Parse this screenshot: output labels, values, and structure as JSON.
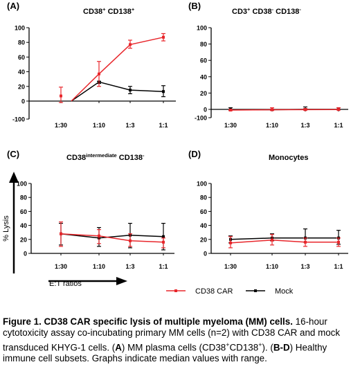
{
  "figure": {
    "x_ticks": [
      "1:30",
      "1:10",
      "1:3",
      "1:1"
    ],
    "y_ticks": [
      -100,
      0,
      20,
      40,
      60,
      80,
      100
    ],
    "y_axis_label": "% Lysis",
    "x_axis_label": "E:T ratios",
    "legend": [
      {
        "label": "CD38 CAR",
        "color": "#e8262b"
      },
      {
        "label": "Mock",
        "color": "#000000"
      }
    ]
  },
  "chart_data": [
    {
      "type": "line",
      "panel_letter": "(A)",
      "title_parts": [
        [
          "CD38",
          ""
        ],
        [
          "+",
          "sup"
        ],
        [
          " CD138",
          ""
        ],
        [
          "+",
          "sup"
        ]
      ],
      "categories": [
        "1:30",
        "1:10",
        "1:3",
        "1:1"
      ],
      "ylim": [
        -100,
        100
      ],
      "series": [
        {
          "name": "CD38 CAR",
          "color": "#e8262b",
          "values": [
            7,
            37,
            77,
            87
          ],
          "low": [
            -8,
            20,
            72,
            82
          ],
          "high": [
            19,
            54,
            83,
            92
          ]
        },
        {
          "name": "Mock",
          "color": "#000000",
          "values": [
            null,
            26,
            15,
            13
          ],
          "low": [
            null,
            24,
            10,
            6
          ],
          "high": [
            null,
            27,
            20,
            21
          ]
        }
      ]
    },
    {
      "type": "line",
      "panel_letter": "(B)",
      "title_parts": [
        [
          "CD3",
          ""
        ],
        [
          "+",
          "sup"
        ],
        [
          " CD38",
          ""
        ],
        [
          "-",
          "sup"
        ],
        [
          " CD138",
          ""
        ],
        [
          "-",
          "sup"
        ]
      ],
      "categories": [
        "1:30",
        "1:10",
        "1:3",
        "1:1"
      ],
      "ylim": [
        -100,
        100
      ],
      "series": [
        {
          "name": "CD38 CAR",
          "color": "#e8262b",
          "values": [
            -8,
            -4,
            -3,
            -2
          ],
          "low": [
            -16,
            -14,
            -10,
            -8
          ],
          "high": [
            -3,
            2,
            1,
            2
          ]
        },
        {
          "name": "Mock",
          "color": "#000000",
          "values": [
            -2,
            -4,
            0,
            0
          ],
          "low": [
            -6,
            -8,
            -3,
            -3
          ],
          "high": [
            2,
            0,
            3,
            2
          ]
        }
      ]
    },
    {
      "type": "line",
      "panel_letter": "(C)",
      "title_parts": [
        [
          "CD38",
          ""
        ],
        [
          "intermediate",
          "sup"
        ],
        [
          " CD138",
          ""
        ],
        [
          "-",
          "sup"
        ]
      ],
      "categories": [
        "1:30",
        "1:10",
        "1:3",
        "1:1"
      ],
      "ylim": [
        0,
        100
      ],
      "series": [
        {
          "name": "CD38 CAR",
          "color": "#e8262b",
          "values": [
            28,
            25,
            18,
            16
          ],
          "low": [
            10,
            14,
            10,
            8
          ],
          "high": [
            45,
            34,
            28,
            22
          ]
        },
        {
          "name": "Mock",
          "color": "#000000",
          "values": [
            28,
            22,
            26,
            24
          ],
          "low": [
            12,
            10,
            8,
            5
          ],
          "high": [
            43,
            37,
            43,
            43
          ]
        }
      ]
    },
    {
      "type": "line",
      "panel_letter": "(D)",
      "title_parts": [
        [
          "Monocytes",
          ""
        ]
      ],
      "categories": [
        "1:30",
        "1:10",
        "1:3",
        "1:1"
      ],
      "ylim": [
        0,
        100
      ],
      "series": [
        {
          "name": "CD38 CAR",
          "color": "#e8262b",
          "values": [
            15,
            19,
            16,
            16
          ],
          "low": [
            8,
            12,
            10,
            10
          ],
          "high": [
            24,
            27,
            22,
            22
          ]
        },
        {
          "name": "Mock",
          "color": "#000000",
          "values": [
            20,
            22,
            22,
            22
          ],
          "low": [
            15,
            18,
            16,
            13
          ],
          "high": [
            25,
            28,
            35,
            33
          ]
        }
      ]
    }
  ],
  "caption": {
    "title": "Figure 1. CD38 CAR specific lysis of multiple myeloma (MM) cells.",
    "parts": [
      [
        " 16-hour cytotoxicity assay co-incubating primary MM cells (n=2) with CD38 CAR and mock transduced KHYG-1 cells. (",
        ""
      ],
      [
        "A",
        "b"
      ],
      [
        ") MM plasma cells (CD38",
        ""
      ],
      [
        "+",
        "sup"
      ],
      [
        "CD138",
        ""
      ],
      [
        "+",
        "sup"
      ],
      [
        "). (",
        ""
      ],
      [
        "B-D",
        "b"
      ],
      [
        ") Healthy immune cell subsets. Graphs indicate median values with range.",
        ""
      ]
    ]
  }
}
